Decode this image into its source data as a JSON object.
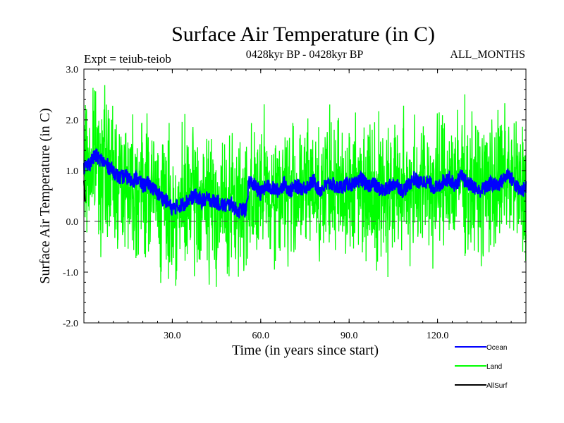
{
  "chart_data": {
    "type": "line",
    "title": "Surface Air Temperature (in C)",
    "subtitle": "0428kyr BP - 0428kyr BP",
    "expt_label": "Expt = teiub-teiob",
    "months_label": "ALL_MONTHS",
    "xlabel": "Time (in years since start)",
    "ylabel": "Surface Air Temperature (in C)",
    "xlim": [
      0,
      150
    ],
    "ylim": [
      -2.0,
      3.0
    ],
    "x_ticks": [
      30,
      60,
      90,
      120
    ],
    "x_tick_labels": [
      "30.0",
      "60.0",
      "90.0",
      "120.0"
    ],
    "y_ticks": [
      -2,
      -1,
      0,
      1,
      2,
      3
    ],
    "y_tick_labels": [
      "-2.0",
      "-1.0",
      "0.0",
      "1.0",
      "2.0",
      "3.0"
    ],
    "reference_line": 0,
    "legend_position": "bottom-right",
    "series": [
      {
        "name": "Ocean",
        "color": "#0000ff",
        "x": [
          0,
          2,
          4,
          6,
          8,
          10,
          12,
          14,
          16,
          18,
          20,
          22,
          24,
          26,
          28,
          30,
          32,
          34,
          36,
          38,
          40,
          42,
          44,
          46,
          48,
          50,
          52,
          54,
          55,
          56,
          58,
          60,
          62,
          64,
          66,
          68,
          70,
          72,
          74,
          76,
          78,
          80,
          82,
          84,
          86,
          88,
          90,
          92,
          94,
          96,
          98,
          100,
          102,
          104,
          106,
          108,
          110,
          112,
          114,
          116,
          118,
          120,
          122,
          124,
          126,
          128,
          130,
          132,
          134,
          136,
          138,
          140,
          142,
          144,
          146,
          148,
          150
        ],
        "values": [
          1.05,
          1.15,
          1.3,
          1.2,
          1.1,
          1.0,
          0.85,
          0.9,
          0.8,
          0.85,
          0.7,
          0.75,
          0.6,
          0.5,
          0.4,
          0.25,
          0.3,
          0.35,
          0.45,
          0.5,
          0.4,
          0.45,
          0.4,
          0.35,
          0.3,
          0.35,
          0.2,
          0.25,
          0.2,
          0.8,
          0.7,
          0.55,
          0.7,
          0.65,
          0.6,
          0.75,
          0.6,
          0.7,
          0.65,
          0.7,
          0.8,
          0.6,
          0.7,
          0.75,
          0.65,
          0.7,
          0.75,
          0.7,
          0.85,
          0.7,
          0.75,
          0.65,
          0.6,
          0.7,
          0.75,
          0.6,
          0.7,
          0.85,
          0.75,
          0.8,
          0.7,
          0.65,
          0.8,
          0.85,
          0.7,
          0.9,
          0.75,
          0.7,
          0.6,
          0.65,
          0.75,
          0.7,
          0.8,
          0.95,
          0.75,
          0.6,
          0.65
        ]
      },
      {
        "name": "Land",
        "color": "#00ff00",
        "x": [
          0,
          2,
          4,
          6,
          8,
          10,
          12,
          14,
          16,
          18,
          20,
          22,
          24,
          26,
          28,
          30,
          32,
          34,
          36,
          38,
          40,
          42,
          44,
          46,
          48,
          50,
          52,
          54,
          56,
          58,
          60,
          62,
          64,
          66,
          68,
          70,
          72,
          74,
          76,
          78,
          80,
          82,
          84,
          86,
          88,
          90,
          92,
          94,
          96,
          98,
          100,
          102,
          104,
          106,
          108,
          110,
          112,
          114,
          116,
          118,
          120,
          122,
          124,
          126,
          128,
          130,
          132,
          134,
          136,
          138,
          140,
          142,
          144,
          146,
          148,
          150
        ],
        "values": [
          1.0,
          1.1,
          1.3,
          1.1,
          1.0,
          0.95,
          0.8,
          0.85,
          0.8,
          0.75,
          0.65,
          0.7,
          0.55,
          0.45,
          0.3,
          0.15,
          0.2,
          0.3,
          0.45,
          0.5,
          0.35,
          0.4,
          0.35,
          0.3,
          0.25,
          0.3,
          0.25,
          0.35,
          0.6,
          0.55,
          0.5,
          0.6,
          0.55,
          0.5,
          0.7,
          0.55,
          0.6,
          0.55,
          0.65,
          0.75,
          0.55,
          0.65,
          0.7,
          0.6,
          0.65,
          0.7,
          0.65,
          0.8,
          0.65,
          0.7,
          0.6,
          0.55,
          0.65,
          0.7,
          0.55,
          0.65,
          0.8,
          0.7,
          0.75,
          0.65,
          0.6,
          0.75,
          0.85,
          0.7,
          0.9,
          0.75,
          0.7,
          0.6,
          0.65,
          0.75,
          0.7,
          0.8,
          0.95,
          0.75,
          0.6,
          0.65
        ],
        "spread": 0.65
      },
      {
        "name": "AllSurf",
        "color": "#000000",
        "x": [
          0,
          0.4
        ],
        "values": [
          0.8,
          0.4
        ]
      }
    ]
  }
}
